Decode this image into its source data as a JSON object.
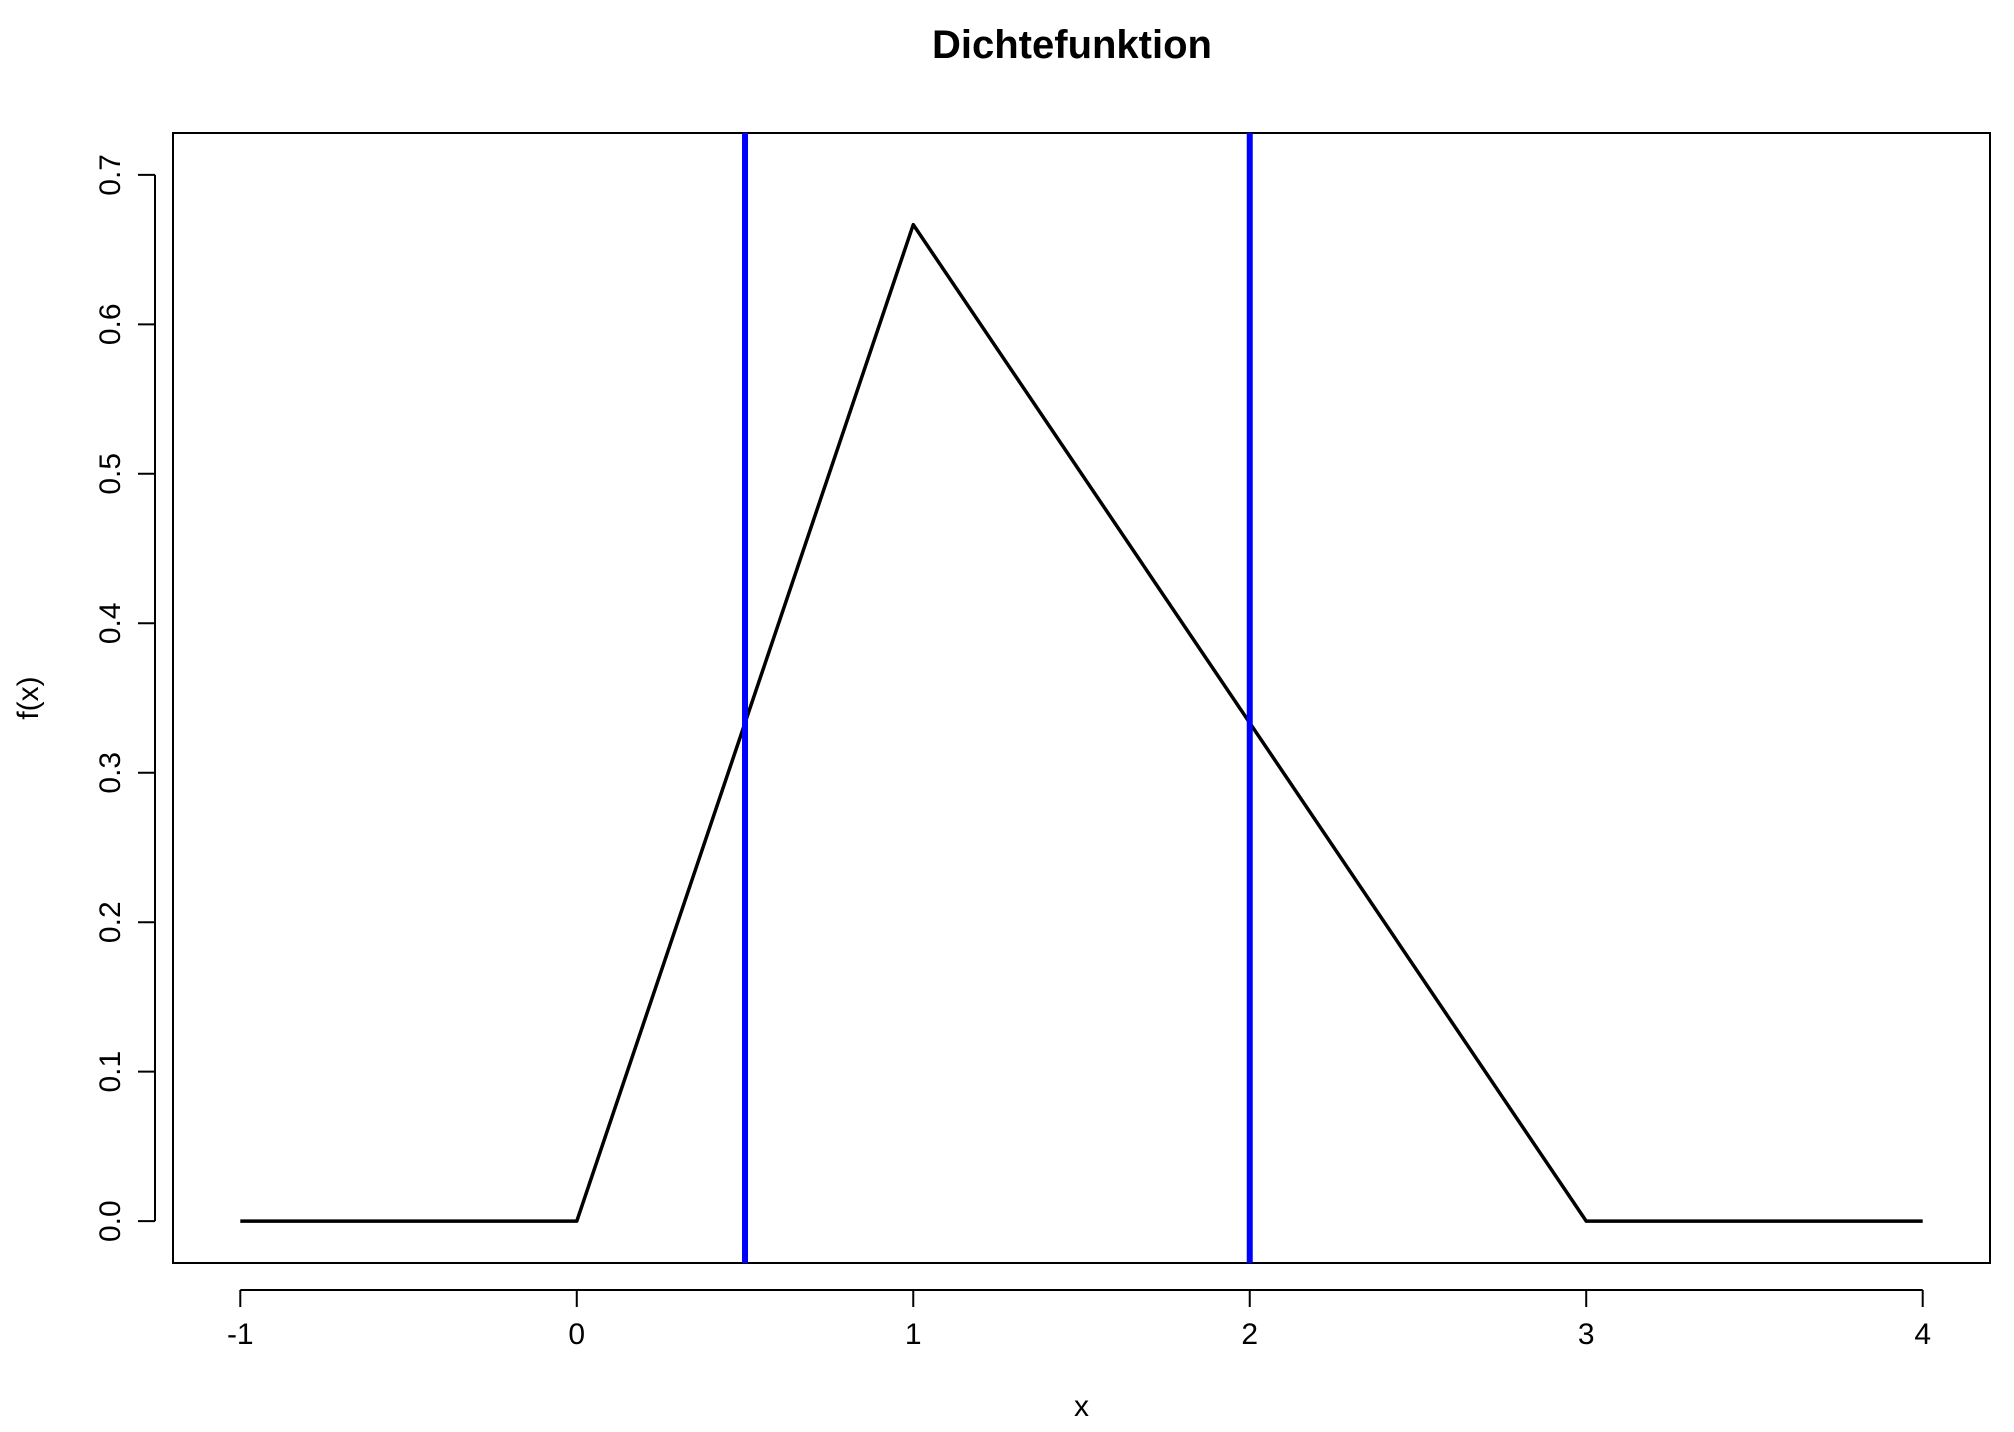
{
  "chart_data": {
    "type": "line",
    "title": "Dichtefunktion",
    "xlabel": "x",
    "ylabel": "f(x)",
    "xlim": [
      -1.2,
      4.2
    ],
    "ylim": [
      -0.028,
      0.728
    ],
    "x_ticks": [
      -1,
      0,
      1,
      2,
      3,
      4
    ],
    "x_tick_labels": [
      "-1",
      "0",
      "1",
      "2",
      "3",
      "4"
    ],
    "y_ticks": [
      0.0,
      0.1,
      0.2,
      0.3,
      0.4,
      0.5,
      0.6,
      0.7
    ],
    "y_tick_labels": [
      "0.0",
      "0.1",
      "0.2",
      "0.3",
      "0.4",
      "0.5",
      "0.6",
      "0.7"
    ],
    "grid": false,
    "series": [
      {
        "color": "#000000",
        "x": [
          -1,
          0,
          1,
          3,
          4
        ],
        "y": [
          0,
          0,
          0.6667,
          0,
          0
        ]
      }
    ],
    "vertical_lines": [
      {
        "x": 0.5,
        "color": "#0000FF"
      },
      {
        "x": 2,
        "color": "#0000FF"
      }
    ]
  }
}
